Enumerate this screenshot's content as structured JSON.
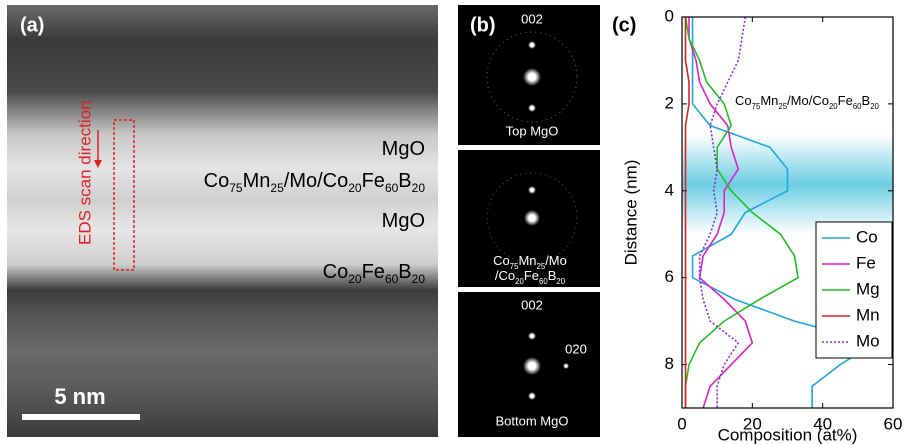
{
  "panel_a": {
    "label": "(a)",
    "scan_label": "EDS scan direction",
    "layers": [
      "MgO",
      "Co75Mn25/Mo/Co20Fe60B20",
      "MgO",
      "Co20Fe60B20"
    ],
    "scale_bar": "5 nm"
  },
  "panel_b": {
    "label": "(b)",
    "tiles": [
      {
        "spots": [
          "002"
        ],
        "caption": "Top MgO"
      },
      {
        "caption_lines": [
          "Co75Mn25/Mo",
          "/Co20Fe60B20"
        ]
      },
      {
        "spots": [
          "002",
          "020"
        ],
        "caption": "Bottom MgO"
      }
    ]
  },
  "chart_data": {
    "type": "line",
    "panel_label": "(c)",
    "x_label": "Distance (nm)",
    "y_label": "Composition (at%)",
    "annotation": "Co75Mn25/Mo/Co20Fe60B20",
    "x": [
      0,
      0.5,
      1,
      1.5,
      2,
      2.5,
      3,
      3.5,
      4,
      4.5,
      5,
      5.5,
      6,
      6.5,
      7,
      7.5,
      8,
      8.5,
      9
    ],
    "xlim": [
      0,
      9
    ],
    "xticks": [
      0,
      2,
      4,
      6,
      8
    ],
    "x_inverted": true,
    "orientation": "vertical",
    "ylim": [
      0,
      60
    ],
    "yticks": [
      0,
      20,
      40,
      60
    ],
    "shaded_range": [
      2.7,
      5.0
    ],
    "shade_color": "#5cc8e0",
    "legend": "lower-right",
    "series": [
      {
        "name": "Co",
        "color": "#1aa7e8",
        "style": "solid",
        "values": [
          3,
          3,
          3,
          3,
          3,
          8,
          25,
          30,
          30,
          18,
          14,
          3,
          3,
          15,
          32,
          55,
          45,
          37,
          37
        ]
      },
      {
        "name": "Fe",
        "color": "#e020c8",
        "style": "solid",
        "values": [
          2,
          2,
          4,
          5,
          8,
          13,
          14,
          16,
          12,
          12,
          10,
          6,
          5,
          12,
          18,
          20,
          14,
          8,
          6
        ]
      },
      {
        "name": "Mg",
        "color": "#20c020",
        "style": "solid",
        "values": [
          1,
          2,
          5,
          7,
          12,
          14,
          10,
          10,
          14,
          20,
          28,
          32,
          33,
          22,
          12,
          5,
          2,
          1,
          1
        ]
      },
      {
        "name": "Mn",
        "color": "#e02020",
        "style": "solid",
        "values": [
          1,
          1,
          1,
          2,
          2,
          1,
          1,
          1,
          1,
          1,
          1,
          1,
          1,
          1,
          1,
          1,
          1,
          1,
          1
        ]
      },
      {
        "name": "Mo",
        "color": "#8a2be2",
        "style": "dotted",
        "values": [
          18,
          17,
          16,
          13,
          10,
          8,
          9,
          10,
          9,
          10,
          8,
          5,
          5,
          6,
          8,
          16,
          12,
          10,
          10
        ]
      }
    ]
  }
}
